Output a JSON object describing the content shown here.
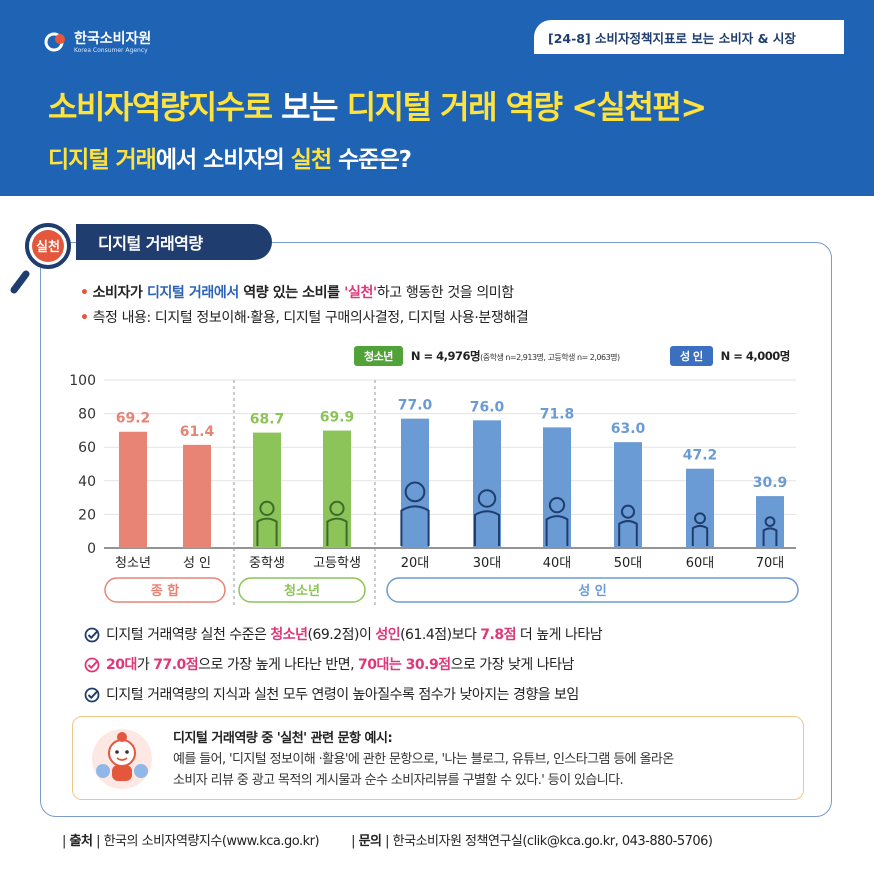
{
  "header": {
    "logo_name": "한국소비자원",
    "logo_sub": "Korea Consumer Agency",
    "tag": "[24-8] 소비자정책지표로 보는 소비자 & 시장",
    "title_part1": "소비자역량지수로 ",
    "title_part2": "보는 ",
    "title_part3": "디지털 거래 역량 <실천편>",
    "subtitle_part1": "디지털 거래",
    "subtitle_part2": "에서 소비자의 ",
    "subtitle_part3": "실천",
    "subtitle_part4": " 수준은?"
  },
  "section": {
    "badge": "실천",
    "title": "디지털 거래역량"
  },
  "bullets": {
    "b1_part1": "소비자가 ",
    "b1_part2": "디지털 거래에서",
    "b1_part3": " 역량 있는 소비를 ",
    "b1_part4": "'실천'",
    "b1_part5": "하고 행동한 것을 의미함",
    "b2": "측정 내용: 디지털 정보이해·활용, 디지털 구매의사결정, 디지털 사용·분쟁해결"
  },
  "legend": {
    "youth_tag": "청소년",
    "youth_n": "N = 4,976명",
    "youth_detail": "(중학생 n=2,913명, 고등학생 n= 2,063명)",
    "adult_tag": "성 인",
    "adult_n": "N = 4,000명"
  },
  "chart_data": {
    "type": "bar",
    "categories": [
      "청소년",
      "성 인",
      "중학생",
      "고등학생",
      "20대",
      "30대",
      "40대",
      "50대",
      "60대",
      "70대"
    ],
    "values": [
      69.2,
      61.4,
      68.7,
      69.9,
      77.0,
      76.0,
      71.8,
      63.0,
      47.2,
      30.9
    ],
    "value_labels": [
      "69.2",
      "61.4",
      "68.7",
      "69.9",
      "77.0",
      "76.0",
      "71.8",
      "63.0",
      "47.2",
      "30.9"
    ],
    "groups": [
      {
        "name": "종 합",
        "start": 0,
        "end": 1,
        "color": "#e88476"
      },
      {
        "name": "청소년",
        "start": 2,
        "end": 3,
        "color": "#8cc45a"
      },
      {
        "name": "성 인",
        "start": 4,
        "end": 9,
        "color": "#6b9bd4"
      }
    ],
    "ylim": [
      0,
      100
    ],
    "yticks": [
      "0",
      "20",
      "40",
      "60",
      "80",
      "100"
    ],
    "xlabel": "",
    "ylabel": "",
    "title": ""
  },
  "checks": {
    "c1_part1": "디지털 거래역량 실천 수준은 ",
    "c1_part2": "청소년",
    "c1_part3": "(69.2점)이 ",
    "c1_part4": "성인",
    "c1_part5": "(61.4점)보다 ",
    "c1_part6": "7.8점",
    "c1_part7": " 더 높게 나타남",
    "c2_part1": "20대",
    "c2_part2": "가 ",
    "c2_part3": "77.0점",
    "c2_part4": "으로 가장 높게 나타난 반면, ",
    "c2_part5": "70대는 30.9점",
    "c2_part6": "으로 가장 낮게 나타남",
    "c3": "디지털 거래역량의 지식과 실천 모두 연령이 높아질수록 점수가 낮아지는 경향을 보임"
  },
  "note": {
    "title": "디지털 거래역량 중 '실천' 관련 문항 예시:",
    "line1": "예를 들어, '디지털 정보이해 ·활용'에 관한 문항으로, '나는 블로그, 유튜브, 인스타그램 등에 올라온",
    "line2": "소비자 리뷰 중 광고 목적의 게시물과 순수 소비자리뷰를 구별할 수 있다.' 등이 있습니다."
  },
  "footer": {
    "source_label": "출처",
    "source_text": "한국의 소비자역량지수(www.kca.go.kr)",
    "contact_label": "문의",
    "contact_text": "한국소비자원 정책연구실(clik@kca.go.kr, 043-880-5706)"
  },
  "colors": {
    "header_bg": "#1e63b4",
    "highlight_yellow": "#ffe23b",
    "total_bar": "#e88476",
    "youth_bar": "#8cc45a",
    "adult_bar": "#6b9bd4",
    "accent_pink": "#e0377a",
    "accent_blue": "#2d64b7"
  }
}
